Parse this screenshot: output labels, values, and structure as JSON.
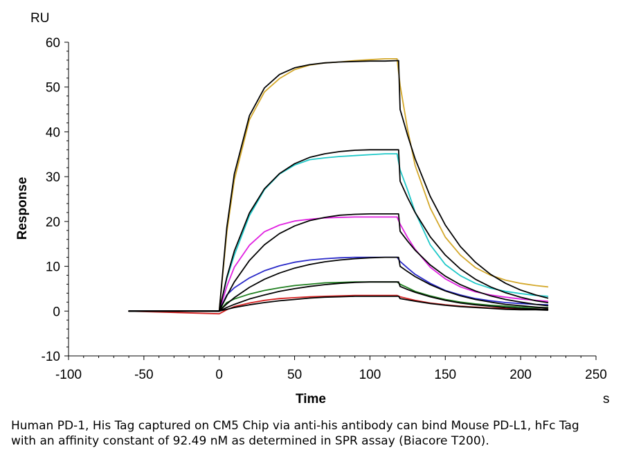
{
  "chart_data": {
    "type": "line",
    "title": "",
    "xlabel": "Time",
    "ylabel": "Response",
    "x_unit": "s",
    "y_unit": "RU",
    "xlim": [
      -100,
      250
    ],
    "ylim": [
      -10,
      60
    ],
    "x_ticks": [
      -100,
      -50,
      0,
      50,
      100,
      150,
      200,
      250
    ],
    "y_ticks": [
      -10,
      0,
      10,
      20,
      30,
      40,
      50,
      60
    ],
    "x_tick_labels": [
      "-100",
      "-50",
      "0",
      "50",
      "100",
      "150",
      "200",
      "250"
    ],
    "y_tick_labels": [
      "-10",
      "0",
      "10",
      "20",
      "30",
      "40",
      "50",
      "60"
    ],
    "grid": false,
    "legend": "none",
    "series": [
      {
        "color": "#D4A82A",
        "kind": "measured",
        "x": [
          -60,
          0,
          5,
          10,
          20,
          30,
          40,
          50,
          60,
          70,
          80,
          90,
          100,
          110,
          118,
          120,
          125,
          130,
          140,
          150,
          160,
          170,
          180,
          190,
          200,
          210,
          218
        ],
        "y": [
          0,
          0,
          17.5,
          29.3,
          42.7,
          48.9,
          51.9,
          53.9,
          54.9,
          55.4,
          55.6,
          55.9,
          56.1,
          56.3,
          56.3,
          50.4,
          40.5,
          32.5,
          23.0,
          16.5,
          12.5,
          9.7,
          8.0,
          6.9,
          6.2,
          5.7,
          5.4
        ]
      },
      {
        "color": "#1EC8C8",
        "kind": "measured",
        "x": [
          -60,
          0,
          5,
          10,
          20,
          30,
          40,
          50,
          60,
          70,
          80,
          90,
          100,
          110,
          118,
          120,
          125,
          130,
          140,
          150,
          160,
          170,
          180,
          190,
          200,
          210,
          218
        ],
        "y": [
          0,
          0,
          7.2,
          12.5,
          21.3,
          27.1,
          30.6,
          32.6,
          33.8,
          34.2,
          34.5,
          34.7,
          34.9,
          35.1,
          35.1,
          31.5,
          27.0,
          22.1,
          14.8,
          10.4,
          7.9,
          6.2,
          5.1,
          4.4,
          3.9,
          3.5,
          3.3
        ]
      },
      {
        "color": "#E020E0",
        "kind": "measured",
        "x": [
          -60,
          0,
          5,
          10,
          20,
          30,
          40,
          50,
          60,
          70,
          80,
          90,
          100,
          110,
          118,
          120,
          125,
          130,
          140,
          150,
          160,
          170,
          180,
          190,
          200,
          210,
          218
        ],
        "y": [
          0,
          0,
          5.5,
          9.8,
          14.7,
          17.7,
          19.2,
          20.1,
          20.5,
          20.8,
          20.9,
          21.0,
          21.0,
          21.0,
          21.0,
          19.4,
          16.4,
          13.8,
          9.8,
          7.2,
          5.4,
          4.3,
          3.6,
          3.1,
          2.7,
          2.4,
          2.2
        ]
      },
      {
        "color": "#2828C8",
        "kind": "measured",
        "x": [
          -60,
          0,
          5,
          10,
          20,
          30,
          40,
          50,
          60,
          70,
          80,
          90,
          100,
          110,
          118,
          120,
          125,
          130,
          140,
          150,
          160,
          170,
          180,
          190,
          200,
          210,
          218
        ],
        "y": [
          0,
          0,
          3.6,
          5.2,
          7.4,
          9.0,
          10.1,
          10.9,
          11.4,
          11.7,
          11.9,
          12.0,
          12.0,
          12.0,
          12.0,
          11.1,
          9.6,
          8.2,
          6.2,
          4.6,
          3.6,
          2.8,
          2.3,
          1.9,
          1.7,
          1.5,
          1.4
        ]
      },
      {
        "color": "#1E7E1E",
        "kind": "measured",
        "x": [
          -60,
          0,
          5,
          10,
          20,
          30,
          40,
          50,
          60,
          70,
          80,
          90,
          100,
          110,
          118,
          120,
          125,
          130,
          140,
          150,
          160,
          170,
          180,
          190,
          200,
          210,
          218
        ],
        "y": [
          0,
          0,
          1.9,
          2.7,
          3.8,
          4.6,
          5.2,
          5.7,
          6.0,
          6.3,
          6.4,
          6.5,
          6.5,
          6.5,
          6.5,
          6.0,
          5.2,
          4.4,
          3.4,
          2.6,
          2.0,
          1.6,
          1.3,
          1.1,
          0.9,
          0.8,
          0.8
        ]
      },
      {
        "color": "#D42020",
        "kind": "measured",
        "x": [
          -60,
          0,
          5,
          10,
          20,
          30,
          40,
          50,
          60,
          70,
          80,
          90,
          100,
          110,
          118,
          120,
          125,
          130,
          140,
          150,
          160,
          170,
          180,
          190,
          200,
          210,
          218
        ],
        "y": [
          0,
          -0.6,
          0.3,
          1.0,
          1.8,
          2.4,
          2.8,
          3.0,
          3.2,
          3.3,
          3.4,
          3.5,
          3.5,
          3.5,
          3.5,
          3.2,
          2.8,
          2.4,
          1.8,
          1.4,
          1.1,
          0.9,
          0.7,
          0.6,
          0.5,
          0.5,
          0.4
        ]
      },
      {
        "color": "#000000",
        "kind": "fit",
        "x": [
          -60,
          0,
          5,
          10,
          20,
          30,
          40,
          50,
          60,
          70,
          80,
          90,
          100,
          110,
          119,
          120,
          125,
          130,
          140,
          150,
          160,
          170,
          180,
          190,
          200,
          210,
          218
        ],
        "y": [
          0,
          0,
          18.6,
          30.6,
          43.6,
          49.8,
          52.8,
          54.3,
          55.0,
          55.4,
          55.6,
          55.7,
          55.8,
          55.8,
          55.9,
          45.0,
          39.2,
          34.0,
          25.6,
          19.2,
          14.4,
          10.9,
          8.2,
          6.2,
          4.7,
          3.6,
          2.9
        ]
      },
      {
        "color": "#000000",
        "kind": "fit",
        "x": [
          -60,
          0,
          5,
          10,
          20,
          30,
          40,
          50,
          60,
          70,
          80,
          90,
          100,
          110,
          119,
          120,
          125,
          130,
          140,
          150,
          160,
          170,
          180,
          190,
          200,
          210,
          218
        ],
        "y": [
          0,
          0,
          7.5,
          13.4,
          21.9,
          27.3,
          30.7,
          32.9,
          34.3,
          35.1,
          35.6,
          35.9,
          36.0,
          36.0,
          36.0,
          29.0,
          25.3,
          22.0,
          16.6,
          12.5,
          9.4,
          7.1,
          5.4,
          4.1,
          3.1,
          2.3,
          1.9
        ]
      },
      {
        "color": "#000000",
        "kind": "fit",
        "x": [
          -60,
          0,
          5,
          10,
          20,
          30,
          40,
          50,
          60,
          70,
          80,
          90,
          100,
          110,
          119,
          120,
          125,
          130,
          140,
          150,
          160,
          170,
          180,
          190,
          200,
          210,
          218
        ],
        "y": [
          0,
          0,
          3.4,
          6.5,
          11.3,
          14.8,
          17.3,
          19.0,
          20.2,
          20.9,
          21.4,
          21.6,
          21.7,
          21.7,
          21.7,
          17.8,
          15.6,
          13.6,
          10.3,
          7.8,
          5.9,
          4.5,
          3.4,
          2.6,
          2.0,
          1.5,
          1.2
        ]
      },
      {
        "color": "#000000",
        "kind": "fit",
        "x": [
          -60,
          0,
          5,
          10,
          20,
          30,
          40,
          50,
          60,
          70,
          80,
          90,
          100,
          110,
          119,
          120,
          125,
          130,
          140,
          150,
          160,
          170,
          180,
          190,
          200,
          210,
          218
        ],
        "y": [
          0,
          0,
          1.6,
          3.0,
          5.3,
          7.1,
          8.5,
          9.6,
          10.4,
          11.0,
          11.4,
          11.7,
          11.9,
          12.0,
          12.0,
          10.0,
          8.8,
          7.7,
          5.9,
          4.5,
          3.4,
          2.6,
          2.0,
          1.5,
          1.2,
          0.9,
          0.7
        ]
      },
      {
        "color": "#000000",
        "kind": "fit",
        "x": [
          -60,
          0,
          5,
          10,
          20,
          30,
          40,
          50,
          60,
          70,
          80,
          90,
          100,
          110,
          119,
          120,
          125,
          130,
          140,
          150,
          160,
          170,
          180,
          190,
          200,
          210,
          218
        ],
        "y": [
          0,
          0,
          0.8,
          1.5,
          2.7,
          3.6,
          4.4,
          5.0,
          5.5,
          5.9,
          6.2,
          6.4,
          6.5,
          6.5,
          6.5,
          5.5,
          4.8,
          4.2,
          3.2,
          2.4,
          1.8,
          1.4,
          1.1,
          0.8,
          0.6,
          0.5,
          0.4
        ]
      },
      {
        "color": "#000000",
        "kind": "fit",
        "x": [
          -60,
          0,
          5,
          10,
          20,
          30,
          40,
          50,
          60,
          70,
          80,
          90,
          100,
          110,
          119,
          120,
          125,
          130,
          140,
          150,
          160,
          170,
          180,
          190,
          200,
          210,
          218
        ],
        "y": [
          0,
          0,
          0.4,
          0.8,
          1.4,
          1.9,
          2.3,
          2.6,
          2.9,
          3.1,
          3.2,
          3.3,
          3.3,
          3.3,
          3.3,
          2.8,
          2.5,
          2.2,
          1.7,
          1.3,
          1.0,
          0.8,
          0.6,
          0.4,
          0.3,
          0.3,
          0.2
        ]
      }
    ]
  },
  "caption": "Human PD-1, His Tag captured on CM5 Chip via anti-his antibody can bind Mouse PD-L1, hFc Tag with an affinity constant of 92.49 nM as determined in SPR assay (Biacore T200)."
}
